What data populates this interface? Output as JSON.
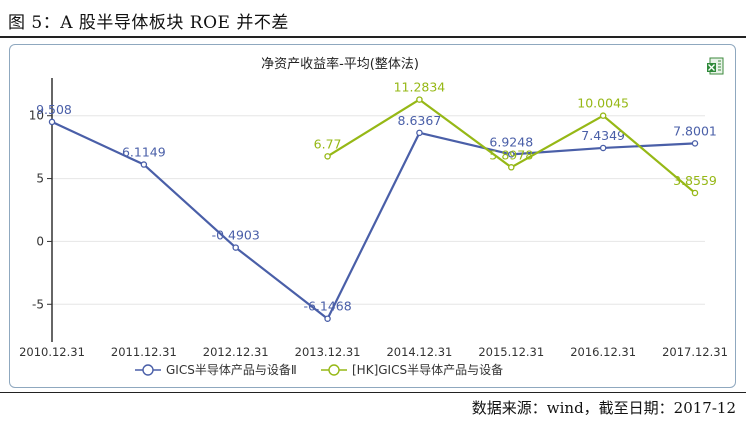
{
  "figure": {
    "title": "图 5：A 股半导体板块 ROE 并不差",
    "source": "数据来源：wind，截至日期：2017-12"
  },
  "colors": {
    "series1": "#4a5fa8",
    "series2": "#96b816",
    "axis": "#333333",
    "grid": "#e6e6e6"
  },
  "chart_data": {
    "type": "line",
    "title": "净资产收益率-平均(整体法)",
    "categories": [
      "2010.12.31",
      "2011.12.31",
      "2012.12.31",
      "2013.12.31",
      "2014.12.31",
      "2015.12.31",
      "2016.12.31",
      "2017.12.31"
    ],
    "ylim": [
      -8,
      13
    ],
    "yticks": [
      -5,
      0,
      5,
      10
    ],
    "ytick_labels": [
      "-5",
      "0",
      "5",
      "10"
    ],
    "legend_position": "bottom",
    "series": [
      {
        "name": "GICS半导体产品与设备Ⅱ",
        "values": [
          9.508,
          6.1149,
          -0.4903,
          -6.1468,
          8.6367,
          6.9248,
          7.4349,
          7.8001
        ],
        "labels": [
          "9.508",
          "6.1149",
          "-0.4903",
          "-6.1468",
          "8.6367",
          "6.9248",
          "7.4349",
          "7.8001"
        ]
      },
      {
        "name": "[HK]GICS半导体产品与设备",
        "values": [
          null,
          null,
          null,
          6.77,
          11.2834,
          5.8978,
          10.0045,
          3.8559
        ],
        "labels": [
          null,
          null,
          null,
          "6.77",
          "11.2834",
          "5.8978",
          "10.0045",
          "3.8559"
        ]
      }
    ]
  }
}
